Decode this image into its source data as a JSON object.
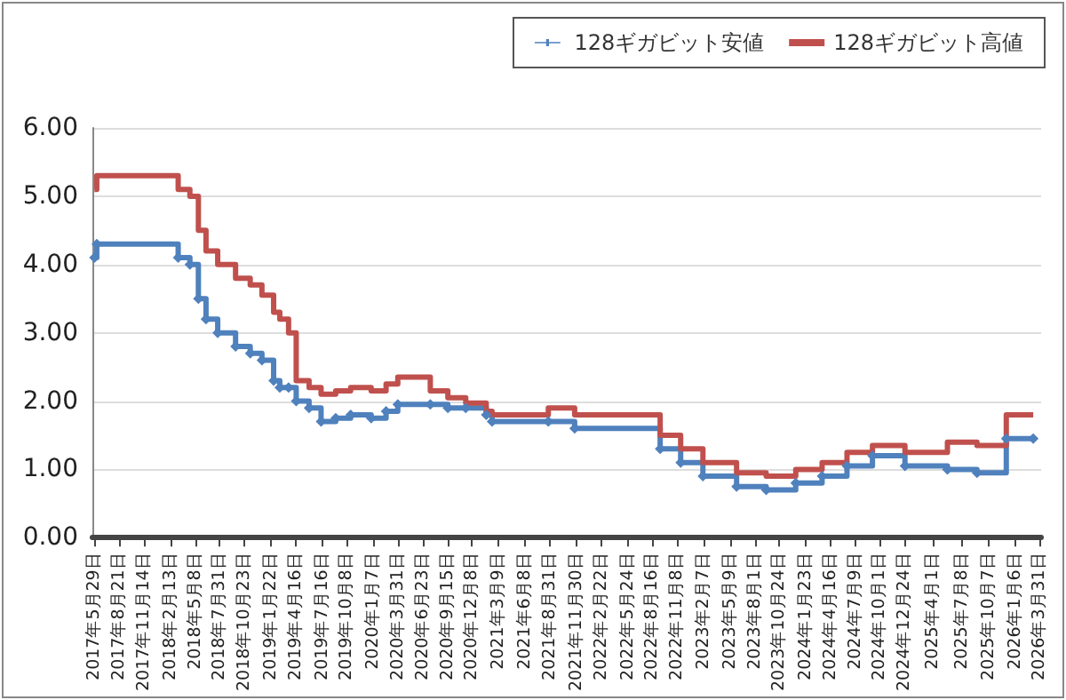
{
  "chart_data": {
    "type": "step",
    "legend": "top right",
    "grid": "y",
    "ylim": [
      0,
      6
    ],
    "yticks": [
      {
        "value": 0,
        "label": "0.00"
      },
      {
        "value": 1,
        "label": "1.00"
      },
      {
        "value": 2,
        "label": "2.00"
      },
      {
        "value": 3,
        "label": "3.00"
      },
      {
        "value": 4,
        "label": "4.00"
      },
      {
        "value": 5,
        "label": "5.00"
      },
      {
        "value": 6,
        "label": "6.00"
      }
    ],
    "xlim": [
      "2017-05-22",
      "2026-04-05"
    ],
    "xticks": [
      {
        "value": "2017-05-29",
        "label": "2017年5月29日"
      },
      {
        "value": "2017-08-21",
        "label": "2017年8月21日"
      },
      {
        "value": "2017-11-14",
        "label": "2017年11月14日"
      },
      {
        "value": "2018-02-13",
        "label": "2018年2月13日"
      },
      {
        "value": "2018-05-08",
        "label": "2018年5月8日"
      },
      {
        "value": "2018-07-31",
        "label": "2018年7月31日"
      },
      {
        "value": "2018-10-23",
        "label": "2018年10月23日"
      },
      {
        "value": "2019-01-22",
        "label": "2019年1月22日"
      },
      {
        "value": "2019-04-16",
        "label": "2019年4月16日"
      },
      {
        "value": "2019-07-16",
        "label": "2019年7月16日"
      },
      {
        "value": "2019-10-08",
        "label": "2019年10月8日"
      },
      {
        "value": "2020-01-07",
        "label": "2020年1月7日"
      },
      {
        "value": "2020-03-31",
        "label": "2020年3月31日"
      },
      {
        "value": "2020-06-23",
        "label": "2020年6月23日"
      },
      {
        "value": "2020-09-15",
        "label": "2020年9月15日"
      },
      {
        "value": "2020-12-08",
        "label": "2020年12月8日"
      },
      {
        "value": "2021-03-09",
        "label": "2021年3月9日"
      },
      {
        "value": "2021-06-08",
        "label": "2021年6月8日"
      },
      {
        "value": "2021-08-31",
        "label": "2021年8月31日"
      },
      {
        "value": "2021-11-30",
        "label": "2021年11月30日"
      },
      {
        "value": "2022-02-22",
        "label": "2022年2月22日"
      },
      {
        "value": "2022-05-24",
        "label": "2022年5月24日"
      },
      {
        "value": "2022-08-16",
        "label": "2022年8月16日"
      },
      {
        "value": "2022-11-08",
        "label": "2022年11月8日"
      },
      {
        "value": "2023-02-07",
        "label": "2023年2月7日"
      },
      {
        "value": "2023-05-09",
        "label": "2023年5月9日"
      },
      {
        "value": "2023-08-01",
        "label": "2023年8月1日"
      },
      {
        "value": "2023-10-24",
        "label": "2023年10月24日"
      },
      {
        "value": "2024-01-23",
        "label": "2024年1月23日"
      },
      {
        "value": "2024-04-16",
        "label": "2024年4月16日"
      },
      {
        "value": "2024-07-09",
        "label": "2024年7月9日"
      },
      {
        "value": "2024-10-01",
        "label": "2024年10月1日"
      },
      {
        "value": "2024-12-24",
        "label": "2024年12月24日"
      },
      {
        "value": "2025-04-01",
        "label": "2025年4月1日"
      },
      {
        "value": "2025-07-08",
        "label": "2025年7月8日"
      },
      {
        "value": "2025-10-07",
        "label": "2025年10月7日"
      },
      {
        "value": "2026-01-06",
        "label": "2026年1月6日"
      },
      {
        "value": "2026-03-31",
        "label": "2026年3月31日"
      }
    ],
    "x": [
      "2017-05-29",
      "2017-06-06",
      "2018-03-11",
      "2018-04-20",
      "2018-05-19",
      "2018-06-14",
      "2018-07-24",
      "2018-09-23",
      "2018-11-12",
      "2018-12-22",
      "2019-01-31",
      "2019-02-21",
      "2019-03-23",
      "2019-04-18",
      "2019-06-01",
      "2019-07-12",
      "2019-08-31",
      "2019-10-21",
      "2019-12-30",
      "2020-02-19",
      "2020-03-30",
      "2020-07-19",
      "2020-09-17",
      "2020-11-17",
      "2021-01-26",
      "2021-02-15",
      "2021-08-26",
      "2021-11-24",
      "2022-09-12",
      "2022-11-21",
      "2023-02-05",
      "2023-05-31",
      "2023-09-09",
      "2023-12-19",
      "2024-03-18",
      "2024-06-11",
      "2024-09-06",
      "2024-12-26",
      "2025-05-20",
      "2025-08-29",
      "2025-12-07",
      "2026-03-09"
    ],
    "series": [
      {
        "name": "128ギガビット安値",
        "color": "#4f81bd",
        "marker": "diamond",
        "values": [
          4.1,
          4.3,
          4.1,
          4.0,
          3.5,
          3.2,
          3.0,
          2.8,
          2.7,
          2.6,
          2.3,
          2.2,
          2.2,
          2.0,
          1.9,
          1.7,
          1.75,
          1.8,
          1.75,
          1.85,
          1.95,
          1.95,
          1.9,
          1.9,
          1.8,
          1.7,
          1.7,
          1.6,
          1.3,
          1.1,
          0.9,
          0.75,
          0.7,
          0.8,
          0.9,
          1.05,
          1.2,
          1.05,
          1.0,
          0.95,
          1.45,
          1.45
        ]
      },
      {
        "name": "128ギガビット高値",
        "color": "#c0504d",
        "marker": "none",
        "values": [
          5.1,
          5.3,
          5.1,
          5.0,
          4.5,
          4.2,
          4.0,
          3.8,
          3.7,
          3.55,
          3.3,
          3.2,
          3.0,
          2.3,
          2.2,
          2.1,
          2.15,
          2.2,
          2.15,
          2.25,
          2.35,
          2.15,
          2.05,
          1.97,
          1.85,
          1.8,
          1.9,
          1.8,
          1.5,
          1.3,
          1.1,
          0.95,
          0.9,
          1.0,
          1.1,
          1.25,
          1.35,
          1.25,
          1.4,
          1.35,
          1.8,
          1.8
        ]
      }
    ]
  }
}
